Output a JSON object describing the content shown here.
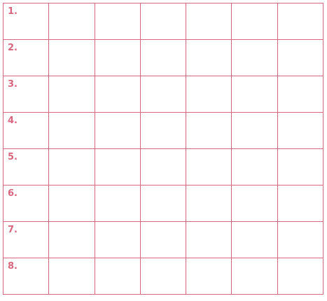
{
  "grid": {
    "line_color": "#d9667e",
    "columns": 7,
    "rows": [
      {
        "label": "1."
      },
      {
        "label": "2."
      },
      {
        "label": "3."
      },
      {
        "label": "4."
      },
      {
        "label": "5."
      },
      {
        "label": "6."
      },
      {
        "label": "7."
      },
      {
        "label": "8."
      }
    ]
  }
}
